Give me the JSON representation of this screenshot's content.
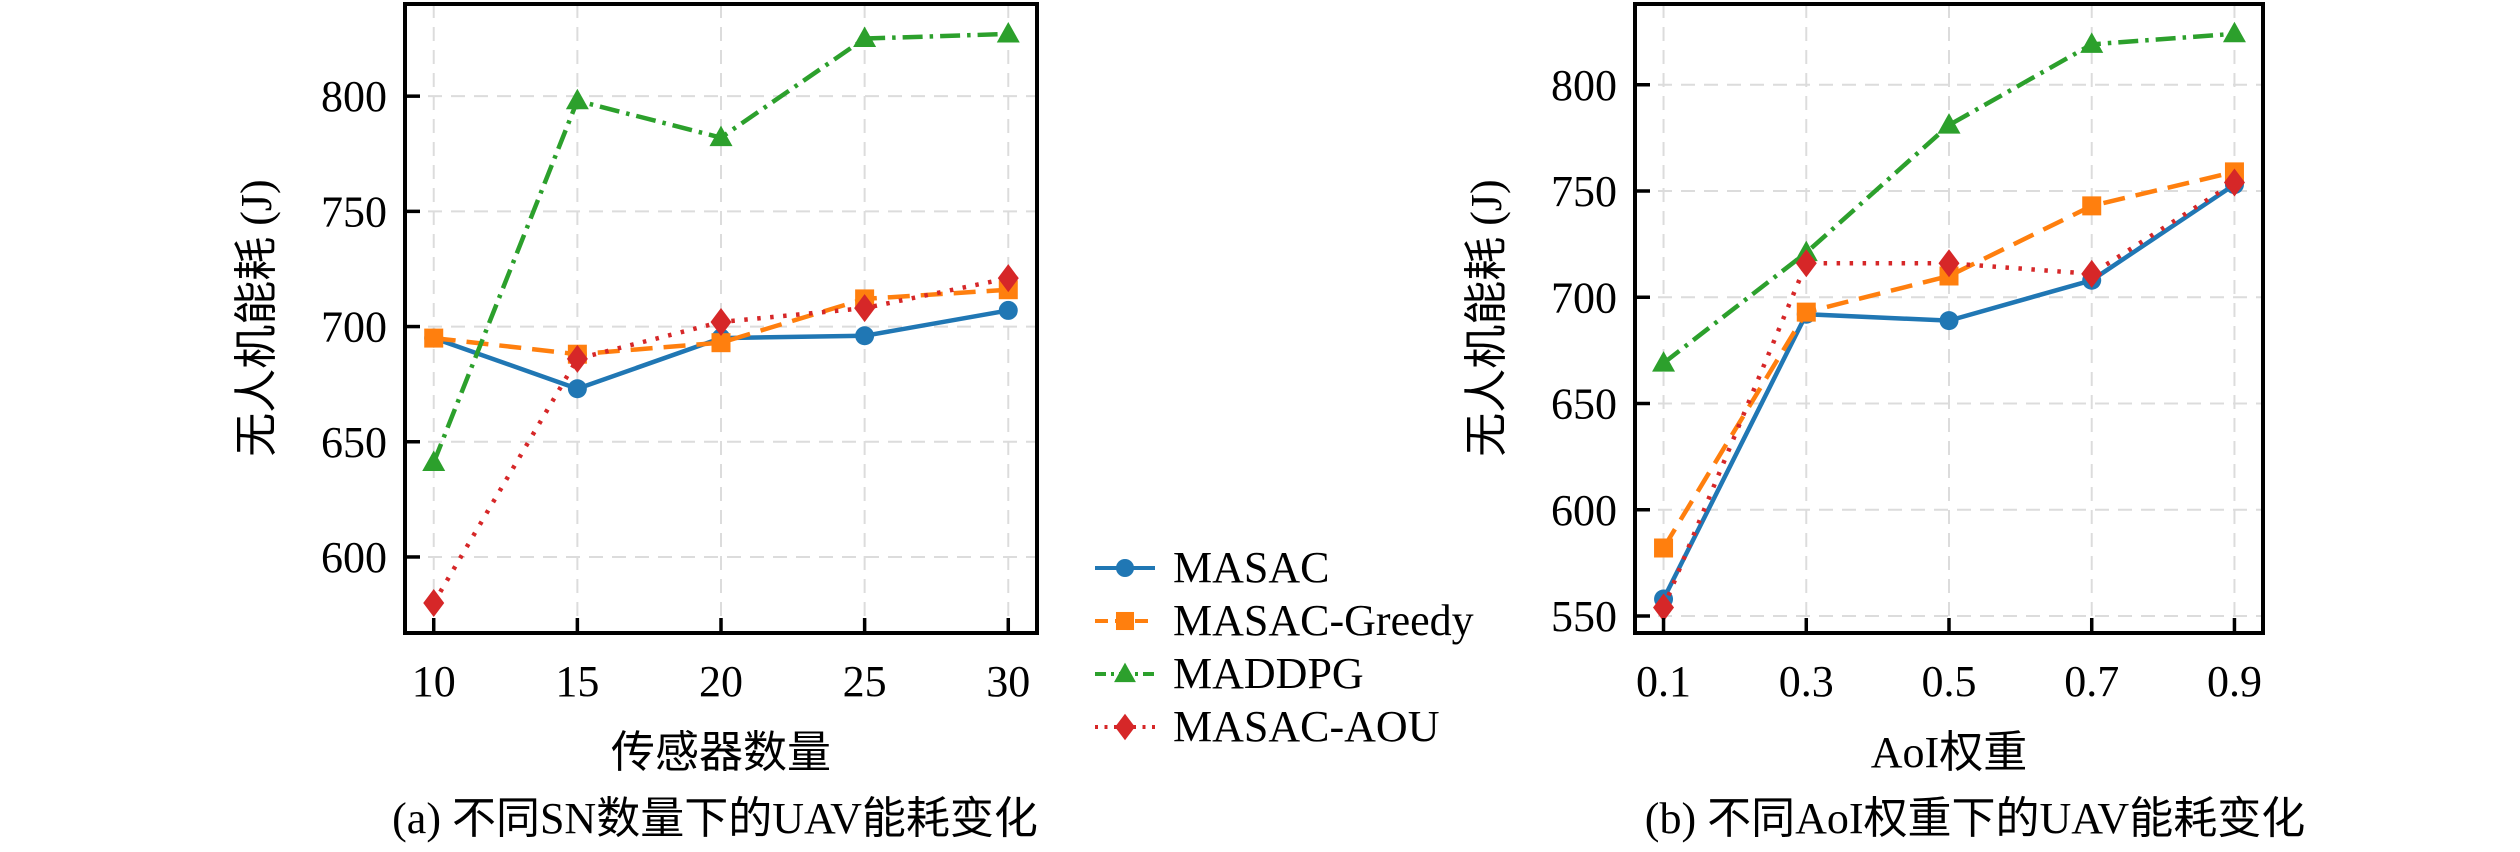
{
  "figure": {
    "background": "#ffffff"
  },
  "palette": {
    "blue": "#2077b4",
    "orange": "#ff7f0e",
    "green": "#2ca02c",
    "red": "#d62728",
    "grid": "#dcdcdc",
    "axis": "#000000"
  },
  "chart_data": [
    {
      "type": "line",
      "title": "(a) 不同SN数量下的UAV能耗变化",
      "xlabel": "传感器数量",
      "ylabel": "无人机能耗 (J)",
      "x": [
        10,
        15,
        20,
        25,
        30
      ],
      "xtick_labels": [
        "10",
        "15",
        "20",
        "25",
        "30"
      ],
      "yticks": [
        600,
        650,
        700,
        750,
        800
      ],
      "ytick_labels": [
        "600",
        "650",
        "700",
        "750",
        "800"
      ],
      "xlim": [
        9,
        31
      ],
      "ylim": [
        567,
        840
      ],
      "grid": true,
      "legend_position": "outside-right-center",
      "series": [
        {
          "name": "MASAC",
          "color": "#2077b4",
          "linestyle": "solid",
          "marker": "circle",
          "values": [
            695,
            673,
            695,
            696,
            707
          ]
        },
        {
          "name": "MASAC-Greedy",
          "color": "#ff7f0e",
          "linestyle": "dashed",
          "marker": "square",
          "values": [
            695,
            688,
            693,
            712,
            716
          ]
        },
        {
          "name": "MADDPG",
          "color": "#2ca02c",
          "linestyle": "dashdot",
          "marker": "triangle",
          "values": [
            641,
            798,
            782,
            825,
            827
          ]
        },
        {
          "name": "MASAC-AOU",
          "color": "#d62728",
          "linestyle": "dotted",
          "marker": "diamond",
          "values": [
            580,
            686,
            702,
            708,
            721
          ]
        }
      ]
    },
    {
      "type": "line",
      "title": "(b) 不同AoI权重下的UAV能耗变化",
      "xlabel": "AoI权重",
      "ylabel": "无人机能耗 (J)",
      "x": [
        0.1,
        0.3,
        0.5,
        0.7,
        0.9
      ],
      "xtick_labels": [
        "0.1",
        "0.3",
        "0.5",
        "0.7",
        "0.9"
      ],
      "yticks": [
        550,
        600,
        650,
        700,
        750,
        800
      ],
      "ytick_labels": [
        "550",
        "600",
        "650",
        "700",
        "750",
        "800"
      ],
      "xlim": [
        0.06,
        0.94
      ],
      "ylim": [
        542,
        838
      ],
      "grid": true,
      "series": [
        {
          "name": "MASAC",
          "color": "#2077b4",
          "linestyle": "solid",
          "marker": "circle",
          "values": [
            558,
            692,
            689,
            708,
            753
          ]
        },
        {
          "name": "MASAC-Greedy",
          "color": "#ff7f0e",
          "linestyle": "dashed",
          "marker": "square",
          "values": [
            582,
            693,
            710,
            743,
            759
          ]
        },
        {
          "name": "MADDPG",
          "color": "#2ca02c",
          "linestyle": "dashdot",
          "marker": "triangle",
          "values": [
            669,
            721,
            781,
            819,
            824
          ]
        },
        {
          "name": "MASAC-AOU",
          "color": "#d62728",
          "linestyle": "dotted",
          "marker": "diamond",
          "values": [
            554,
            716,
            716,
            711,
            754
          ]
        }
      ]
    }
  ]
}
